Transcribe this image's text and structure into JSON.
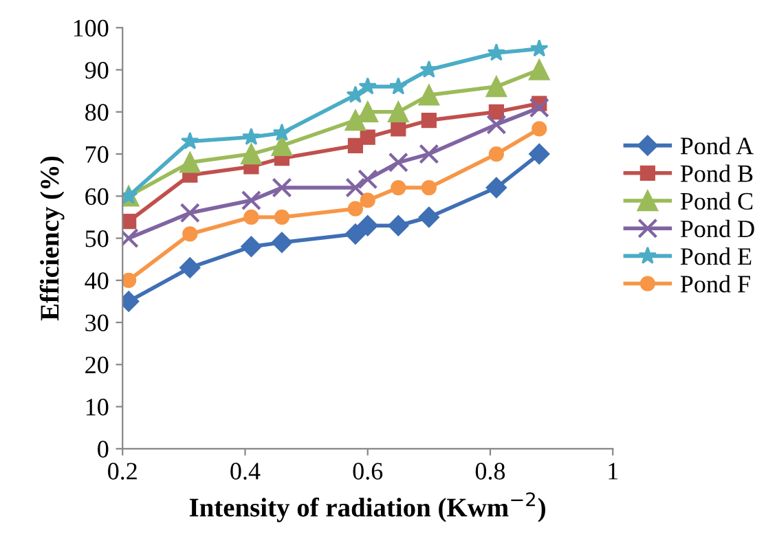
{
  "chart_data": {
    "type": "line",
    "xlabel": "Intensity of radiation (Kwm$^{−2}$)",
    "ylabel": "Efficiency (%)",
    "x": [
      0.21,
      0.31,
      0.41,
      0.46,
      0.58,
      0.6,
      0.65,
      0.7,
      0.81,
      0.88
    ],
    "xlim": [
      0.2,
      1
    ],
    "xticks": [
      0.2,
      0.4,
      0.6,
      0.8,
      1
    ],
    "ylim": [
      0,
      100
    ],
    "yticks": [
      0,
      10,
      20,
      30,
      40,
      50,
      60,
      70,
      80,
      90,
      100
    ],
    "grid": false,
    "legend": "right",
    "line_style": "solid",
    "series": [
      {
        "name": "Pond A",
        "color": "#3f6fb5",
        "marker": "diamond",
        "values": [
          35,
          43,
          48,
          49,
          51,
          53,
          53,
          55,
          62,
          70
        ]
      },
      {
        "name": "Pond B",
        "color": "#c0504d",
        "marker": "square",
        "values": [
          54,
          65,
          67,
          69,
          72,
          74,
          76,
          78,
          80,
          82
        ]
      },
      {
        "name": "Pond C",
        "color": "#9bbb59",
        "marker": "triangle",
        "values": [
          60,
          68,
          70,
          72,
          78,
          80,
          80,
          84,
          86,
          90
        ]
      },
      {
        "name": "Pond D",
        "color": "#8064a2",
        "marker": "cross",
        "values": [
          50,
          56,
          59,
          62,
          62,
          64,
          68,
          70,
          77,
          81
        ]
      },
      {
        "name": "Pond E",
        "color": "#4bacc6",
        "marker": "star",
        "values": [
          60,
          73,
          74,
          75,
          84,
          86,
          86,
          90,
          94,
          95
        ]
      },
      {
        "name": "Pond F",
        "color": "#f79646",
        "marker": "circle",
        "values": [
          40,
          51,
          55,
          55,
          57,
          59,
          62,
          62,
          70,
          76
        ]
      }
    ]
  }
}
